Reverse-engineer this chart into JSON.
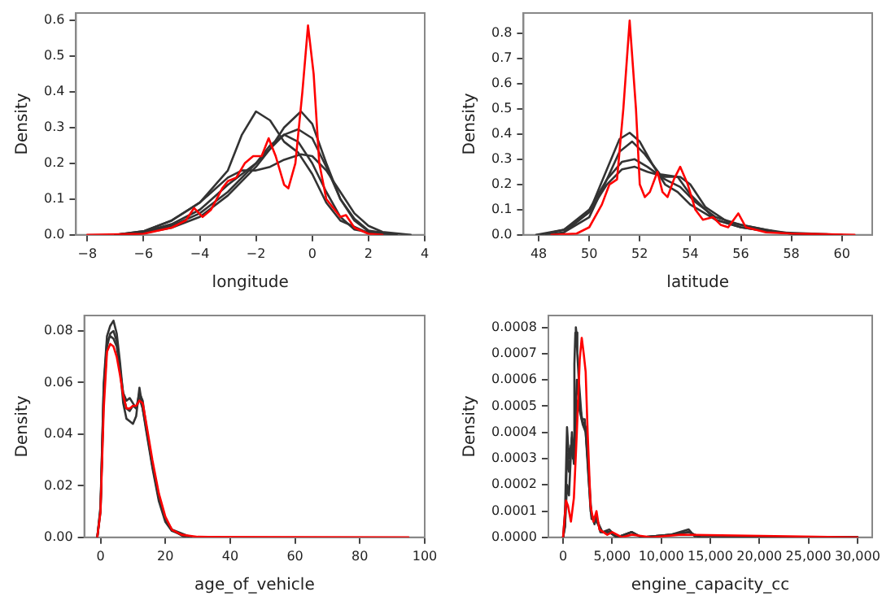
{
  "chart_data": [
    {
      "type": "line",
      "xlabel": "longitude",
      "ylabel": "Density",
      "marker": "none",
      "grid": false,
      "xlim": [
        -8.4,
        4
      ],
      "xticks": [
        {
          "value": -8,
          "label": "−8"
        },
        {
          "value": -6,
          "label": "−6"
        },
        {
          "value": -4,
          "label": "−4"
        },
        {
          "value": -2,
          "label": "−2"
        },
        0,
        2,
        4
      ],
      "ylim": [
        0,
        0.62
      ],
      "yticks": [
        {
          "value": 0,
          "label": "0.0"
        },
        0.1,
        0.2,
        0.3,
        0.4,
        0.5,
        0.6
      ],
      "series": [
        {
          "color": "#333333",
          "x": [
            -7,
            -6,
            -5,
            -4,
            -3,
            -2.5,
            -2,
            -1.5,
            -1,
            -0.5,
            0,
            0.5,
            1,
            2,
            3
          ],
          "values": [
            0,
            0.01,
            0.04,
            0.09,
            0.18,
            0.28,
            0.345,
            0.32,
            0.26,
            0.23,
            0.17,
            0.09,
            0.04,
            0.005,
            0
          ]
        },
        {
          "color": "#333333",
          "x": [
            -7,
            -6,
            -5,
            -4,
            -3,
            -2,
            -1.5,
            -1,
            -0.4,
            0,
            0.5,
            1,
            1.5,
            2,
            3
          ],
          "values": [
            0,
            0.005,
            0.02,
            0.05,
            0.11,
            0.19,
            0.24,
            0.3,
            0.345,
            0.31,
            0.2,
            0.1,
            0.04,
            0.01,
            0
          ]
        },
        {
          "color": "#333333",
          "x": [
            -7,
            -6,
            -5,
            -4,
            -3,
            -2,
            -1.5,
            -1,
            -0.5,
            0,
            0.5,
            1,
            1.5,
            2,
            3
          ],
          "values": [
            0,
            0.008,
            0.03,
            0.07,
            0.14,
            0.2,
            0.24,
            0.28,
            0.295,
            0.27,
            0.19,
            0.1,
            0.045,
            0.012,
            0
          ]
        },
        {
          "color": "#333333",
          "x": [
            -7,
            -6,
            -5,
            -4,
            -3,
            -2.5,
            -2,
            -1.5,
            -1,
            -0.4,
            0,
            0.5,
            1,
            1.5,
            2,
            2.5,
            3.5
          ],
          "values": [
            0,
            0.01,
            0.04,
            0.09,
            0.16,
            0.18,
            0.18,
            0.19,
            0.21,
            0.225,
            0.22,
            0.18,
            0.12,
            0.06,
            0.025,
            0.008,
            0
          ]
        },
        {
          "color": "#333333",
          "x": [
            -7,
            -6,
            -5,
            -4,
            -3,
            -2,
            -1.5,
            -1,
            -0.5,
            0,
            0.5,
            1,
            1.5,
            2.5
          ],
          "values": [
            0,
            0.005,
            0.025,
            0.06,
            0.12,
            0.2,
            0.25,
            0.28,
            0.26,
            0.2,
            0.12,
            0.05,
            0.015,
            0
          ]
        },
        {
          "color": "#ff0000",
          "x": [
            -8,
            -6,
            -5,
            -4.5,
            -4.2,
            -3.9,
            -3.6,
            -3.2,
            -3,
            -2.7,
            -2.4,
            -2.1,
            -1.8,
            -1.55,
            -1.3,
            -1,
            -0.85,
            -0.6,
            -0.35,
            -0.15,
            0.05,
            0.25,
            0.5,
            0.8,
            1,
            1.2,
            1.5,
            2,
            2.5
          ],
          "values": [
            0,
            0.003,
            0.02,
            0.04,
            0.075,
            0.05,
            0.07,
            0.13,
            0.15,
            0.16,
            0.2,
            0.22,
            0.22,
            0.27,
            0.22,
            0.14,
            0.13,
            0.2,
            0.4,
            0.585,
            0.45,
            0.2,
            0.1,
            0.07,
            0.05,
            0.055,
            0.02,
            0.003,
            0
          ]
        }
      ]
    },
    {
      "type": "line",
      "xlabel": "latitude",
      "ylabel": "Density",
      "marker": "none",
      "grid": false,
      "xlim": [
        47.4,
        61.2
      ],
      "xticks": [
        48,
        50,
        52,
        54,
        56,
        58,
        60
      ],
      "ylim": [
        0,
        0.88
      ],
      "yticks": [
        {
          "value": 0,
          "label": "0.0"
        },
        0.1,
        0.2,
        0.3,
        0.4,
        0.5,
        0.6,
        0.7,
        0.8
      ],
      "series": [
        {
          "color": "#333333",
          "x": [
            48.3,
            49,
            50,
            50.7,
            51.2,
            51.6,
            52,
            52.5,
            53,
            53.5,
            54,
            55,
            56,
            57,
            58,
            58.6
          ],
          "values": [
            0,
            0.01,
            0.09,
            0.26,
            0.38,
            0.405,
            0.37,
            0.28,
            0.2,
            0.17,
            0.12,
            0.06,
            0.03,
            0.015,
            0.005,
            0
          ]
        },
        {
          "color": "#333333",
          "x": [
            48.6,
            49,
            50,
            50.7,
            51.2,
            51.7,
            52.2,
            52.8,
            53.5,
            54,
            55,
            56,
            57,
            58,
            59.2
          ],
          "values": [
            0,
            0.01,
            0.07,
            0.22,
            0.33,
            0.37,
            0.32,
            0.24,
            0.23,
            0.16,
            0.06,
            0.03,
            0.015,
            0.005,
            0
          ]
        },
        {
          "color": "#333333",
          "x": [
            47.9,
            49,
            50,
            50.7,
            51.3,
            51.8,
            52.3,
            53,
            53.6,
            54.2,
            55,
            56,
            57,
            58,
            59.6
          ],
          "values": [
            0,
            0.02,
            0.1,
            0.22,
            0.29,
            0.3,
            0.27,
            0.22,
            0.19,
            0.13,
            0.07,
            0.04,
            0.02,
            0.005,
            0
          ]
        },
        {
          "color": "#333333",
          "x": [
            48.1,
            49,
            50,
            50.7,
            51.3,
            51.8,
            52.3,
            53,
            53.6,
            54,
            54.6,
            55.5,
            56.5,
            57.5,
            60
          ],
          "values": [
            0,
            0.02,
            0.09,
            0.2,
            0.26,
            0.27,
            0.25,
            0.23,
            0.23,
            0.2,
            0.11,
            0.05,
            0.03,
            0.01,
            0
          ]
        },
        {
          "color": "#ff0000",
          "x": [
            48.5,
            49.5,
            50,
            50.5,
            50.8,
            51.1,
            51.35,
            51.6,
            51.85,
            52,
            52.2,
            52.4,
            52.7,
            52.9,
            53.1,
            53.35,
            53.6,
            53.9,
            54.2,
            54.5,
            54.9,
            55.2,
            55.5,
            55.9,
            56.2,
            57,
            58,
            60.5
          ],
          "values": [
            0,
            0.005,
            0.03,
            0.12,
            0.2,
            0.22,
            0.5,
            0.85,
            0.5,
            0.2,
            0.15,
            0.17,
            0.25,
            0.17,
            0.15,
            0.22,
            0.27,
            0.2,
            0.1,
            0.06,
            0.07,
            0.04,
            0.03,
            0.085,
            0.03,
            0.01,
            0.005,
            0
          ]
        }
      ]
    },
    {
      "type": "line",
      "xlabel": "age_of_vehicle",
      "ylabel": "Density",
      "marker": "none",
      "grid": false,
      "xlim": [
        -5,
        100
      ],
      "xticks": [
        0,
        20,
        40,
        60,
        80,
        100
      ],
      "ylim": [
        0,
        0.086
      ],
      "yticks": [
        {
          "value": 0,
          "label": "0.00"
        },
        {
          "value": 0.02,
          "label": "0.02"
        },
        {
          "value": 0.04,
          "label": "0.04"
        },
        {
          "value": 0.06,
          "label": "0.06"
        },
        {
          "value": 0.08,
          "label": "0.08"
        }
      ],
      "series": [
        {
          "color": "#333333",
          "x": [
            -1,
            0,
            1,
            2,
            3,
            4,
            5,
            6,
            7,
            8,
            9,
            10,
            11,
            12,
            13,
            14,
            16,
            18,
            20,
            22,
            26
          ],
          "values": [
            0,
            0.012,
            0.06,
            0.078,
            0.082,
            0.084,
            0.079,
            0.068,
            0.055,
            0.05,
            0.049,
            0.051,
            0.05,
            0.056,
            0.053,
            0.044,
            0.028,
            0.015,
            0.007,
            0.003,
            0
          ]
        },
        {
          "color": "#333333",
          "x": [
            -1,
            0,
            1,
            2,
            3,
            4,
            5,
            6,
            7,
            8,
            9,
            10,
            11,
            12,
            13,
            14,
            16,
            18,
            20,
            22,
            27
          ],
          "values": [
            0,
            0.01,
            0.055,
            0.074,
            0.079,
            0.08,
            0.076,
            0.066,
            0.052,
            0.046,
            0.045,
            0.044,
            0.047,
            0.058,
            0.05,
            0.042,
            0.027,
            0.014,
            0.006,
            0.0025,
            0
          ]
        },
        {
          "color": "#333333",
          "x": [
            -1,
            0,
            1,
            2,
            3,
            4,
            5,
            6,
            7,
            8,
            9,
            10,
            11,
            12,
            13,
            14,
            16,
            18,
            20,
            22,
            28
          ],
          "values": [
            0,
            0.011,
            0.058,
            0.076,
            0.078,
            0.077,
            0.074,
            0.065,
            0.056,
            0.053,
            0.054,
            0.052,
            0.05,
            0.054,
            0.05,
            0.043,
            0.028,
            0.016,
            0.007,
            0.003,
            0
          ]
        },
        {
          "color": "#ff0000",
          "x": [
            -1,
            0,
            1,
            2,
            3,
            4,
            5,
            6,
            7,
            8,
            9,
            10,
            11,
            12,
            13,
            14,
            16,
            18,
            20,
            22,
            25,
            30,
            95
          ],
          "values": [
            0,
            0.01,
            0.05,
            0.072,
            0.075,
            0.074,
            0.07,
            0.063,
            0.055,
            0.05,
            0.05,
            0.051,
            0.051,
            0.053,
            0.052,
            0.045,
            0.03,
            0.017,
            0.008,
            0.003,
            0.001,
            0.0002,
            0
          ]
        }
      ]
    },
    {
      "type": "line",
      "xlabel": "engine_capacity_cc",
      "ylabel": "Density",
      "marker": "none",
      "grid": false,
      "xlim": [
        -1500,
        31500
      ],
      "xticks": [
        0,
        {
          "value": 5000,
          "label": "5,000"
        },
        {
          "value": 10000,
          "label": "10,000"
        },
        {
          "value": 15000,
          "label": "15,000"
        },
        {
          "value": 20000,
          "label": "20,000"
        },
        {
          "value": 25000,
          "label": "25,000"
        },
        {
          "value": 30000,
          "label": "30,000"
        }
      ],
      "ylim": [
        0,
        0.000845
      ],
      "yticks": [
        {
          "value": 0,
          "label": "0.0000"
        },
        {
          "value": 0.0001,
          "label": "0.0001"
        },
        {
          "value": 0.0002,
          "label": "0.0002"
        },
        {
          "value": 0.0003,
          "label": "0.0003"
        },
        {
          "value": 0.0004,
          "label": "0.0004"
        },
        {
          "value": 0.0005,
          "label": "0.0005"
        },
        {
          "value": 0.0006,
          "label": "0.0006"
        },
        {
          "value": 0.0007,
          "label": "0.0007"
        },
        {
          "value": 0.0008,
          "label": "0.0008"
        }
      ],
      "series": [
        {
          "color": "#333333",
          "x": [
            0,
            200,
            400,
            600,
            800,
            1000,
            1150,
            1250,
            1300,
            1350,
            1450,
            1600,
            1900,
            2200,
            2500,
            2800,
            3200,
            3400,
            3800,
            4700,
            5500,
            7000,
            8000,
            11000,
            12800,
            13500,
            30000
          ],
          "values": [
            0,
            0.0001,
            0.00042,
            0.0003,
            0.00035,
            0.0003,
            0.00066,
            0.00078,
            0.0008,
            0.00078,
            0.0007,
            0.0006,
            0.00045,
            0.00045,
            0.0003,
            0.0001,
            5e-05,
            8e-05,
            2e-05,
            2e-05,
            0,
            2e-05,
            0,
            1e-05,
            3e-05,
            0,
            0
          ]
        },
        {
          "color": "#333333",
          "x": [
            0,
            200,
            400,
            600,
            900,
            1100,
            1400,
            1700,
            2000,
            2300,
            2600,
            2900,
            3400,
            4000,
            4700,
            5500,
            7000,
            8000,
            11000,
            12800,
            14000,
            30000
          ],
          "values": [
            0,
            5e-05,
            0.0002,
            0.00016,
            0.0004,
            0.0003,
            0.0006,
            0.0005,
            0.00044,
            0.00042,
            0.00025,
            8e-05,
            7e-05,
            2e-05,
            3e-05,
            0,
            2e-05,
            0,
            1e-05,
            2e-05,
            0,
            0
          ]
        },
        {
          "color": "#333333",
          "x": [
            0,
            200,
            400,
            600,
            900,
            1100,
            1400,
            1700,
            2000,
            2300,
            2600,
            2900,
            3400,
            4000,
            4700,
            5500,
            7000,
            8000,
            11000,
            12800,
            14000,
            30000
          ],
          "values": [
            0,
            4e-05,
            0.00032,
            0.00025,
            0.00038,
            0.00028,
            0.00052,
            0.00048,
            0.00043,
            0.0004,
            0.00022,
            7e-05,
            6e-05,
            2e-05,
            2e-05,
            0,
            2e-05,
            0,
            1e-05,
            2e-05,
            0,
            0
          ]
        },
        {
          "color": "#ff0000",
          "x": [
            0,
            300,
            500,
            800,
            1100,
            1400,
            1700,
            1900,
            2100,
            2300,
            2500,
            2800,
            3100,
            3400,
            3700,
            4500,
            5000,
            6000,
            7000,
            9000,
            12000,
            30000
          ],
          "values": [
            0,
            0.00014,
            0.00012,
            6e-05,
            0.00015,
            0.0004,
            0.00068,
            0.00076,
            0.0007,
            0.00063,
            0.0004,
            0.00012,
            6e-05,
            0.0001,
            3e-05,
            1e-05,
            2e-05,
            0,
            1e-05,
            0,
            1e-05,
            0
          ]
        }
      ]
    }
  ]
}
